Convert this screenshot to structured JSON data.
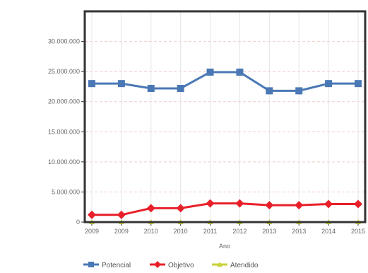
{
  "chart_data": {
    "type": "line",
    "categories": [
      "2009",
      "2009",
      "2010",
      "2010",
      "2011",
      "2012",
      "2013",
      "2013",
      "2014",
      "2015"
    ],
    "xlabel": "Ano",
    "ylabel": "",
    "ylim": [
      0,
      35000000
    ],
    "y_ticks": [
      0,
      5000000,
      10000000,
      15000000,
      20000000,
      25000000,
      30000000
    ],
    "y_tick_labels": [
      "0",
      "5.000.000",
      "10.000.000",
      "15.000.000",
      "20.000.000",
      "25.000.000",
      "30.000.000"
    ],
    "grid": true,
    "legend_position": "bottom",
    "series": [
      {
        "name": "Potencial",
        "color": "#4a78b5",
        "values": [
          23000000,
          23000000,
          22200000,
          22200000,
          24900000,
          24900000,
          21800000,
          21800000,
          23000000,
          23000000
        ]
      },
      {
        "name": "Objetivo",
        "color": "#e8202a",
        "values": [
          1200000,
          1200000,
          2300000,
          2300000,
          3100000,
          3100000,
          2800000,
          2800000,
          3000000,
          3000000
        ]
      },
      {
        "name": "Atendido",
        "color": "#c8d23a",
        "values": [
          0,
          0,
          0,
          0,
          0,
          0,
          0,
          0,
          0,
          0
        ]
      }
    ]
  }
}
